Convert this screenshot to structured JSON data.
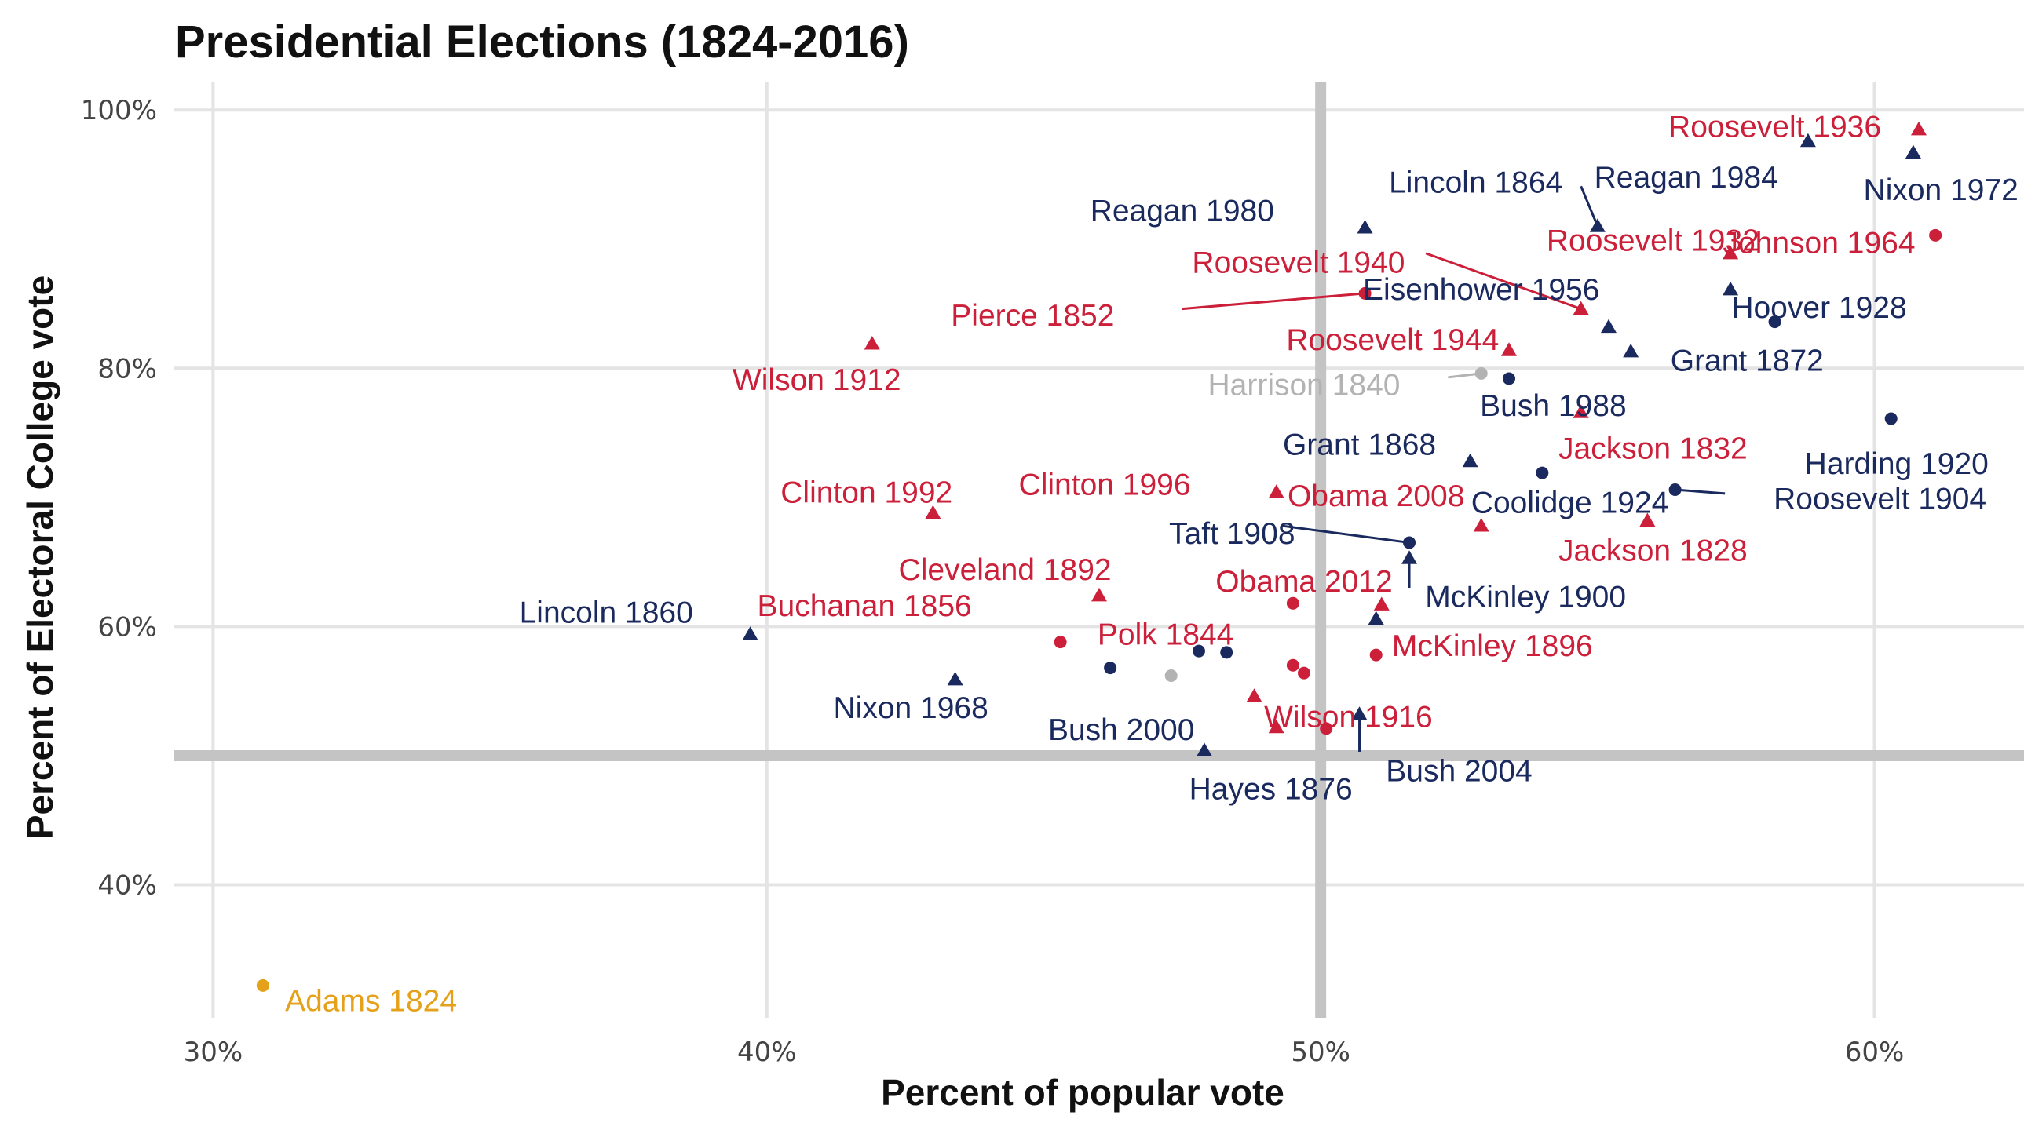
{
  "chart_data": {
    "type": "scatter",
    "title": "Presidential Elections (1824-2016)",
    "xlabel": "Percent of popular vote",
    "ylabel": "Percent of Electoral College vote",
    "xlim": [
      29.3,
      62.7
    ],
    "ylim": [
      29.7,
      102.2
    ],
    "x_ticks": [
      30,
      40,
      50,
      60
    ],
    "x_tick_labels": [
      "30%",
      "40%",
      "50%",
      "60%"
    ],
    "y_ticks": [
      40,
      60,
      80,
      100
    ],
    "y_tick_labels": [
      "40%",
      "60%",
      "80%",
      "100%"
    ],
    "reference_lines": {
      "x": 50,
      "y": 50
    },
    "grid": true,
    "colors": {
      "republican": "#1b2a5e",
      "democrat": "#cc1f3a",
      "whig": "#b3b3b3",
      "other": "#e6a11b",
      "grid": "#e4e4e4",
      "reference": "#c4c4c4"
    },
    "points": [
      {
        "label": "Adams 1824",
        "x": 30.9,
        "y": 32.2,
        "party": "other",
        "shape": "circle",
        "lx": 31.3,
        "ly": 31.0,
        "anchor": "start"
      },
      {
        "label": "Lincoln 1860",
        "x": 39.7,
        "y": 59.4,
        "party": "republican",
        "shape": "triangle",
        "lx": 37.1,
        "ly": 61.1,
        "anchor": "middle"
      },
      {
        "label": "Wilson 1912",
        "x": 41.9,
        "y": 81.9,
        "party": "democrat",
        "shape": "triangle",
        "lx": 40.9,
        "ly": 79.1,
        "anchor": "middle"
      },
      {
        "label": "Clinton 1992",
        "x": 43.0,
        "y": 68.8,
        "party": "democrat",
        "shape": "triangle",
        "lx": 41.8,
        "ly": 70.4,
        "anchor": "middle"
      },
      {
        "label": "Nixon 1968",
        "x": 43.4,
        "y": 55.9,
        "party": "republican",
        "shape": "triangle",
        "lx": 42.6,
        "ly": 53.7,
        "anchor": "middle"
      },
      {
        "label": "Buchanan 1856",
        "x": 45.3,
        "y": 58.8,
        "party": "democrat",
        "shape": "circle",
        "lx": 43.7,
        "ly": 61.6,
        "anchor": "end"
      },
      {
        "label": "Cleveland 1892",
        "x": 46.0,
        "y": 62.4,
        "party": "democrat",
        "shape": "triangle",
        "lx": 44.3,
        "ly": 64.4,
        "anchor": "middle"
      },
      {
        "label": "",
        "x": 46.2,
        "y": 56.8,
        "party": "republican",
        "shape": "circle"
      },
      {
        "label": "",
        "x": 47.3,
        "y": 56.2,
        "party": "whig",
        "shape": "circle"
      },
      {
        "label": "",
        "x": 47.8,
        "y": 58.1,
        "party": "republican",
        "shape": "circle"
      },
      {
        "label": "Bush 2000",
        "x": 47.9,
        "y": 50.4,
        "party": "republican",
        "shape": "triangle",
        "lx": 46.4,
        "ly": 52.0,
        "anchor": "middle"
      },
      {
        "label": "",
        "x": 48.3,
        "y": 58.0,
        "party": "republican",
        "shape": "circle"
      },
      {
        "label": "Polk 1844",
        "x": 49.5,
        "y": 61.8,
        "party": "democrat",
        "shape": "circle",
        "lx": 47.2,
        "ly": 59.4,
        "anchor": "middle"
      },
      {
        "label": "",
        "x": 48.8,
        "y": 54.6,
        "party": "democrat",
        "shape": "triangle"
      },
      {
        "label": "",
        "x": 49.2,
        "y": 52.2,
        "party": "democrat",
        "shape": "triangle"
      },
      {
        "label": "Clinton 1996",
        "x": 49.2,
        "y": 70.4,
        "party": "democrat",
        "shape": "triangle",
        "lx": 46.1,
        "ly": 71.0,
        "anchor": "middle"
      },
      {
        "label": "Hayes 1876",
        "x": 48.5,
        "y": 50.1,
        "party": "republican",
        "shape": "none",
        "lx": 49.1,
        "ly": 47.4,
        "anchor": "middle"
      },
      {
        "label": "",
        "x": 49.5,
        "y": 57.0,
        "party": "democrat",
        "shape": "circle"
      },
      {
        "label": "",
        "x": 49.7,
        "y": 56.4,
        "party": "democrat",
        "shape": "circle"
      },
      {
        "label": "Wilson 1916",
        "x": 50.1,
        "y": 52.1,
        "party": "democrat",
        "shape": "circle",
        "lx": 50.5,
        "ly": 53.0,
        "anchor": "middle"
      },
      {
        "label": "Bush 2004",
        "x": 50.7,
        "y": 53.2,
        "party": "republican",
        "shape": "triangle",
        "lx": 52.5,
        "ly": 48.8,
        "anchor": "middle",
        "leader": [
          50.7,
          50.3
        ]
      },
      {
        "label": "Reagan 1980",
        "x": 50.8,
        "y": 90.9,
        "party": "republican",
        "shape": "triangle",
        "lx": 47.5,
        "ly": 92.2,
        "anchor": "middle"
      },
      {
        "label": "Pierce 1852",
        "x": 50.8,
        "y": 85.8,
        "party": "democrat",
        "shape": "circle",
        "lx": 44.8,
        "ly": 84.1,
        "anchor": "middle",
        "leader": [
          47.5,
          84.6
        ]
      },
      {
        "label": "Obama 2012",
        "x": 51.1,
        "y": 61.7,
        "party": "democrat",
        "shape": "triangle",
        "lx": 49.7,
        "ly": 63.5,
        "anchor": "middle"
      },
      {
        "label": "McKinley 1896",
        "x": 51.0,
        "y": 57.8,
        "party": "democrat",
        "shape": "circle",
        "lx": 53.1,
        "ly": 58.5,
        "anchor": "middle"
      },
      {
        "label": "",
        "x": 51.0,
        "y": 60.6,
        "party": "republican",
        "shape": "triangle"
      },
      {
        "label": "McKinley 1900",
        "x": 51.6,
        "y": 65.3,
        "party": "republican",
        "shape": "triangle",
        "lx": 53.7,
        "ly": 62.3,
        "anchor": "middle",
        "leader": [
          51.6,
          63.0
        ]
      },
      {
        "label": "Taft 1908",
        "x": 51.6,
        "y": 66.5,
        "party": "republican",
        "shape": "circle",
        "lx": 48.4,
        "ly": 67.2,
        "anchor": "middle",
        "leader": [
          49.3,
          67.8
        ]
      },
      {
        "label": "Grant 1868",
        "x": 52.7,
        "y": 72.8,
        "party": "republican",
        "shape": "triangle",
        "lx": 50.7,
        "ly": 74.1,
        "anchor": "middle"
      },
      {
        "label": "Obama 2008",
        "x": 52.9,
        "y": 67.8,
        "party": "democrat",
        "shape": "triangle",
        "lx": 51.0,
        "ly": 70.1,
        "anchor": "middle"
      },
      {
        "label": "Harrison 1840",
        "x": 52.9,
        "y": 79.6,
        "party": "whig",
        "shape": "circle",
        "lx": 49.7,
        "ly": 78.7,
        "anchor": "middle",
        "leader": [
          52.3,
          79.3
        ]
      },
      {
        "label": "Roosevelt 1944",
        "x": 53.4,
        "y": 81.4,
        "party": "democrat",
        "shape": "triangle",
        "lx": 51.3,
        "ly": 82.2,
        "anchor": "middle"
      },
      {
        "label": "Bush 1988",
        "x": 53.4,
        "y": 79.2,
        "party": "republican",
        "shape": "circle",
        "lx": 54.2,
        "ly": 77.1,
        "anchor": "middle"
      },
      {
        "label": "Coolidge 1924",
        "x": 54.0,
        "y": 71.9,
        "party": "republican",
        "shape": "circle",
        "lx": 54.5,
        "ly": 69.6,
        "anchor": "middle"
      },
      {
        "label": "Roosevelt 1940",
        "x": 54.7,
        "y": 84.6,
        "party": "democrat",
        "shape": "triangle",
        "lx": 49.6,
        "ly": 88.2,
        "anchor": "middle",
        "leader": [
          51.9,
          88.9
        ]
      },
      {
        "label": "Jackson 1832",
        "x": 54.7,
        "y": 76.6,
        "party": "democrat",
        "shape": "triangle",
        "lx": 56.0,
        "ly": 73.8,
        "anchor": "middle"
      },
      {
        "label": "Lincoln 1864",
        "x": 55.0,
        "y": 91.0,
        "party": "republican",
        "shape": "triangle",
        "lx": 52.8,
        "ly": 94.4,
        "anchor": "middle",
        "leader": [
          54.7,
          94.1
        ]
      },
      {
        "label": "Jackson 1828",
        "x": 55.9,
        "y": 68.2,
        "party": "democrat",
        "shape": "triangle",
        "lx": 56.0,
        "ly": 65.9,
        "anchor": "middle"
      },
      {
        "label": "Eisenhower 1956",
        "x": 55.2,
        "y": 83.2,
        "party": "republican",
        "shape": "triangle",
        "lx": 52.9,
        "ly": 86.1,
        "anchor": "middle"
      },
      {
        "label": "Grant 1872",
        "x": 55.6,
        "y": 81.3,
        "party": "republican",
        "shape": "triangle",
        "lx": 57.7,
        "ly": 80.6,
        "anchor": "middle"
      },
      {
        "label": "Roosevelt 1904",
        "x": 56.4,
        "y": 70.6,
        "party": "republican",
        "shape": "circle",
        "lx": 60.1,
        "ly": 69.9,
        "anchor": "middle",
        "leader": [
          57.3,
          70.3
        ]
      },
      {
        "label": "Reagan 1984",
        "x": 58.8,
        "y": 97.6,
        "party": "republican",
        "shape": "triangle",
        "lx": 56.6,
        "ly": 94.8,
        "anchor": "middle"
      },
      {
        "label": "Roosevelt 1932",
        "x": 57.4,
        "y": 88.9,
        "party": "democrat",
        "shape": "triangle",
        "lx": 56.0,
        "ly": 89.9,
        "anchor": "middle"
      },
      {
        "label": "Johnson 1964",
        "x": 61.1,
        "y": 90.3,
        "party": "democrat",
        "shape": "circle",
        "lx": 59.0,
        "ly": 89.7,
        "anchor": "middle"
      },
      {
        "label": "Hoover 1928",
        "x": 57.4,
        "y": 86.1,
        "party": "republican",
        "shape": "triangle",
        "lx": 59.0,
        "ly": 84.7,
        "anchor": "middle"
      },
      {
        "label": "",
        "x": 58.2,
        "y": 83.6,
        "party": "republican",
        "shape": "circle"
      },
      {
        "label": "Roosevelt 1936",
        "x": 60.8,
        "y": 98.5,
        "party": "democrat",
        "shape": "triangle",
        "lx": 58.2,
        "ly": 98.7,
        "anchor": "middle"
      },
      {
        "label": "Nixon 1972",
        "x": 60.7,
        "y": 96.7,
        "party": "republican",
        "shape": "triangle",
        "lx": 61.2,
        "ly": 93.8,
        "anchor": "middle"
      },
      {
        "label": "Harding 1920",
        "x": 60.3,
        "y": 76.1,
        "party": "republican",
        "shape": "circle",
        "lx": 60.4,
        "ly": 72.6,
        "anchor": "middle"
      }
    ]
  }
}
